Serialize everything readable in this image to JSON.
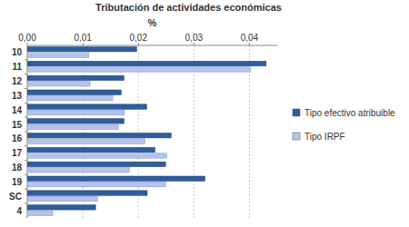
{
  "chart_data": {
    "type": "bar",
    "orientation": "horizontal",
    "title": "Tributación de actividades económicas",
    "xlabel": "%",
    "categories": [
      "10",
      "11",
      "12",
      "13",
      "14",
      "15",
      "16",
      "17",
      "18",
      "19",
      "SC",
      "4"
    ],
    "series": [
      {
        "name": "Tipo efectivo atribuible",
        "color": "#2f5d9e",
        "values": [
          0.0197,
          0.043,
          0.0174,
          0.0169,
          0.0215,
          0.0174,
          0.0259,
          0.023,
          0.0249,
          0.032,
          0.0216,
          0.0123
        ]
      },
      {
        "name": "Tipo IRPF",
        "color": "#b3c3ec",
        "values": [
          0.0111,
          0.0402,
          0.0113,
          0.0154,
          0.0175,
          0.0164,
          0.0212,
          0.0251,
          0.0184,
          0.0249,
          0.0127,
          0.0046
        ]
      }
    ],
    "xlim": [
      0,
      0.045
    ],
    "xticks": [
      {
        "value": 0,
        "label": "0,00"
      },
      {
        "value": 0.01,
        "label": "0,01"
      },
      {
        "value": 0.02,
        "label": "0,02"
      },
      {
        "value": 0.03,
        "label": "0,03"
      },
      {
        "value": 0.04,
        "label": "0,04"
      }
    ],
    "grid": true,
    "legend": "right"
  }
}
